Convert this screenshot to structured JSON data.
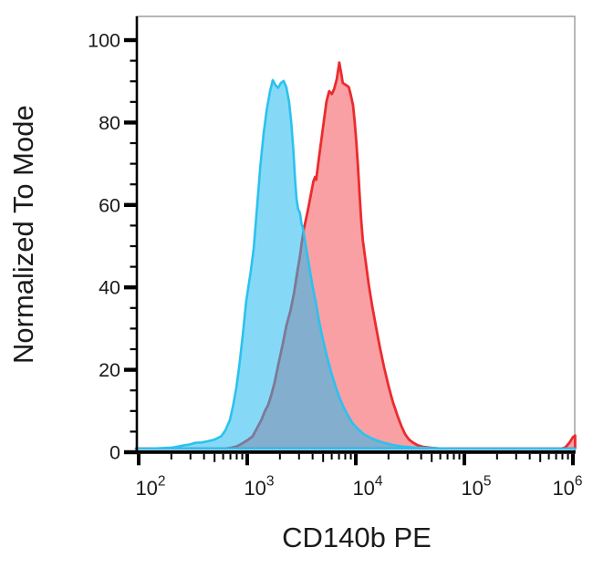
{
  "chart_data": {
    "type": "area",
    "subtype": "flow-cytometry-overlay-histogram",
    "title": "",
    "xlabel": "CD140b PE",
    "ylabel": "Normalized To Mode",
    "x_scale": "log10",
    "x_range_log10": [
      2,
      6
    ],
    "x_tick_exponents": [
      2,
      3,
      4,
      5,
      6
    ],
    "x_tick_base": "10",
    "ylim": [
      0,
      100
    ],
    "y_major_ticks": [
      0,
      20,
      40,
      60,
      80,
      100
    ],
    "y_minor_step": 5,
    "grid": false,
    "legend": "none",
    "frame": {
      "background": "#ffffff",
      "spine_left_bottom_color": "#000000",
      "spine_top_right_color": "#ababab",
      "text_color": "#1b1b1b",
      "overlap_fill_appearance": "#93a9c0"
    },
    "series": [
      {
        "id": "red-histogram",
        "stroke": "#ec2b2e",
        "fill": "#f9a0a5",
        "stroke_width": 2.8,
        "points_log10x_y": [
          [
            1.975,
            0
          ],
          [
            2.3,
            0
          ],
          [
            2.6,
            0
          ],
          [
            2.8,
            0
          ],
          [
            2.85,
            0.2
          ],
          [
            2.9,
            0.5
          ],
          [
            2.95,
            1.2
          ],
          [
            3.0,
            2
          ],
          [
            3.05,
            3
          ],
          [
            3.09,
            5
          ],
          [
            3.13,
            7
          ],
          [
            3.16,
            9
          ],
          [
            3.175,
            9.8
          ],
          [
            3.19,
            10.5
          ],
          [
            3.22,
            13
          ],
          [
            3.25,
            16
          ],
          [
            3.29,
            21
          ],
          [
            3.33,
            26
          ],
          [
            3.36,
            30
          ],
          [
            3.4,
            34
          ],
          [
            3.43,
            38
          ],
          [
            3.46,
            43
          ],
          [
            3.485,
            47
          ],
          [
            3.5,
            50
          ],
          [
            3.52,
            53.5
          ],
          [
            3.56,
            58.5
          ],
          [
            3.585,
            62
          ],
          [
            3.61,
            65.5
          ],
          [
            3.625,
            66.5
          ],
          [
            3.635,
            65.8
          ],
          [
            3.655,
            70
          ],
          [
            3.685,
            76
          ],
          [
            3.71,
            81
          ],
          [
            3.73,
            85
          ],
          [
            3.755,
            87.5
          ],
          [
            3.78,
            86.8
          ],
          [
            3.8,
            88
          ],
          [
            3.825,
            90.5
          ],
          [
            3.848,
            94.5
          ],
          [
            3.865,
            92
          ],
          [
            3.88,
            89.5
          ],
          [
            3.91,
            89
          ],
          [
            3.935,
            88.5
          ],
          [
            3.955,
            86.5
          ],
          [
            3.975,
            84
          ],
          [
            3.99,
            80
          ],
          [
            4.005,
            75
          ],
          [
            4.02,
            69
          ],
          [
            4.035,
            62
          ],
          [
            4.05,
            56
          ],
          [
            4.065,
            51
          ],
          [
            4.09,
            46
          ],
          [
            4.12,
            40
          ],
          [
            4.15,
            35
          ],
          [
            4.185,
            30
          ],
          [
            4.22,
            25
          ],
          [
            4.26,
            20
          ],
          [
            4.3,
            15.5
          ],
          [
            4.34,
            11.5
          ],
          [
            4.385,
            8
          ],
          [
            4.42,
            5.5
          ],
          [
            4.455,
            3.5
          ],
          [
            4.49,
            2.2
          ],
          [
            4.53,
            1.4
          ],
          [
            4.57,
            0.8
          ],
          [
            4.62,
            0.4
          ],
          [
            4.7,
            0.15
          ],
          [
            4.78,
            0
          ],
          [
            5.0,
            0
          ],
          [
            5.3,
            0
          ],
          [
            5.6,
            0
          ],
          [
            5.9,
            0
          ],
          [
            5.93,
            0.3
          ],
          [
            5.97,
            1.5
          ],
          [
            6.0,
            2.8
          ],
          [
            6.02,
            3.2
          ]
        ]
      },
      {
        "id": "cyan-histogram",
        "stroke": "#2ac2ef",
        "fill": "rgba(34,186,238,0.55)",
        "stroke_width": 2.6,
        "points_log10x_y": [
          [
            1.975,
            0
          ],
          [
            2.1,
            0
          ],
          [
            2.2,
            0.1
          ],
          [
            2.3,
            0.2
          ],
          [
            2.36,
            0.5
          ],
          [
            2.42,
            0.8
          ],
          [
            2.47,
            1.0
          ],
          [
            2.52,
            1.4
          ],
          [
            2.58,
            1.5
          ],
          [
            2.64,
            1.8
          ],
          [
            2.7,
            2.2
          ],
          [
            2.76,
            3
          ],
          [
            2.8,
            4.5
          ],
          [
            2.84,
            7
          ],
          [
            2.87,
            10.5
          ],
          [
            2.9,
            15
          ],
          [
            2.93,
            21
          ],
          [
            2.96,
            28
          ],
          [
            2.99,
            36
          ],
          [
            3.03,
            43
          ],
          [
            3.06,
            49
          ],
          [
            3.09,
            59
          ],
          [
            3.12,
            69
          ],
          [
            3.15,
            77
          ],
          [
            3.18,
            83
          ],
          [
            3.21,
            87.5
          ],
          [
            3.235,
            90.2
          ],
          [
            3.26,
            89
          ],
          [
            3.285,
            88.3
          ],
          [
            3.31,
            89.5
          ],
          [
            3.335,
            90
          ],
          [
            3.36,
            88.5
          ],
          [
            3.385,
            85
          ],
          [
            3.405,
            80
          ],
          [
            3.425,
            73
          ],
          [
            3.44,
            66
          ],
          [
            3.455,
            61
          ],
          [
            3.47,
            58.5
          ],
          [
            3.485,
            57.8
          ],
          [
            3.5,
            55
          ],
          [
            3.515,
            53.8
          ],
          [
            3.53,
            51
          ],
          [
            3.55,
            48
          ],
          [
            3.575,
            44
          ],
          [
            3.6,
            40
          ],
          [
            3.63,
            36
          ],
          [
            3.66,
            31.5
          ],
          [
            3.695,
            27
          ],
          [
            3.73,
            23
          ],
          [
            3.77,
            19
          ],
          [
            3.81,
            15.5
          ],
          [
            3.85,
            12.5
          ],
          [
            3.89,
            10
          ],
          [
            3.93,
            8
          ],
          [
            3.97,
            6.2
          ],
          [
            4.02,
            4.8
          ],
          [
            4.07,
            3.6
          ],
          [
            4.13,
            2.7
          ],
          [
            4.19,
            2
          ],
          [
            4.26,
            1.4
          ],
          [
            4.34,
            0.9
          ],
          [
            4.43,
            0.5
          ],
          [
            4.55,
            0.25
          ],
          [
            4.7,
            0.1
          ],
          [
            4.85,
            0
          ],
          [
            5.2,
            0
          ],
          [
            5.6,
            0
          ],
          [
            6.02,
            0
          ]
        ]
      }
    ]
  }
}
